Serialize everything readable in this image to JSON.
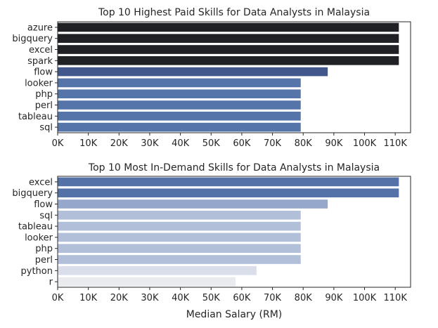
{
  "chart_data": [
    {
      "type": "bar",
      "orientation": "horizontal",
      "title": "Top 10 Highest Paid Skills for Data Analysts in Malaysia",
      "xlabel": "",
      "ylabel": "",
      "categories": [
        "azure",
        "bigquery",
        "excel",
        "spark",
        "flow",
        "looker",
        "php",
        "perl",
        "tableau",
        "sql"
      ],
      "values": [
        111175,
        111175,
        111175,
        111175,
        88000,
        79200,
        79200,
        79200,
        79200,
        79200
      ],
      "colors": [
        "#202125",
        "#202125",
        "#202125",
        "#202125",
        "#42588c",
        "#5574aa",
        "#5574aa",
        "#5574aa",
        "#5574aa",
        "#5574aa"
      ],
      "xlim": [
        0,
        115000
      ],
      "xticks": [
        0,
        10000,
        20000,
        30000,
        40000,
        50000,
        60000,
        70000,
        80000,
        90000,
        100000,
        110000
      ],
      "xtick_labels": [
        "0K",
        "10K",
        "20K",
        "30K",
        "40K",
        "50K",
        "60K",
        "70K",
        "80K",
        "90K",
        "100K",
        "110K"
      ],
      "grid": false
    },
    {
      "type": "bar",
      "orientation": "horizontal",
      "title": "Top 10 Most In-Demand Skills for Data Analysts in Malaysia",
      "xlabel": "Median Salary (RM)",
      "ylabel": "",
      "categories": [
        "excel",
        "bigquery",
        "flow",
        "sql",
        "tableau",
        "looker",
        "php",
        "perl",
        "python",
        "r"
      ],
      "values": [
        111175,
        111175,
        88000,
        79200,
        79200,
        79200,
        79200,
        79200,
        64800,
        58000
      ],
      "colors": [
        "#5472a8",
        "#5472a8",
        "#95a7cb",
        "#b2bfd9",
        "#b2bfd9",
        "#b2bfd9",
        "#b2bfd9",
        "#b2bfd9",
        "#dadeea",
        "#eaebee"
      ],
      "xlim": [
        0,
        115000
      ],
      "xticks": [
        0,
        10000,
        20000,
        30000,
        40000,
        50000,
        60000,
        70000,
        80000,
        90000,
        100000,
        110000
      ],
      "xtick_labels": [
        "0K",
        "10K",
        "20K",
        "30K",
        "40K",
        "50K",
        "60K",
        "70K",
        "80K",
        "90K",
        "100K",
        "110K"
      ],
      "grid": false
    }
  ]
}
